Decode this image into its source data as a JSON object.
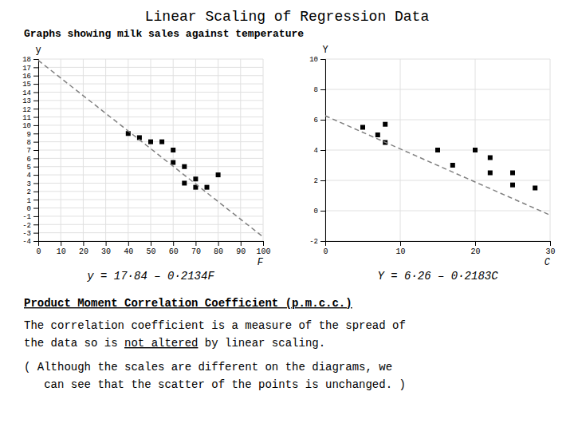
{
  "title": "Linear Scaling of Regression Data",
  "subtitle": "Graphs showing milk sales against temperature",
  "annotations": [
    "Product Moment Correlation Coefficient (p.m.c.c.)",
    "The correlation coefficient is a measure of the spread of",
    "the data so is ",
    "not altered",
    " by linear scaling.",
    "( Although the scales are different on the diagrams, we",
    "   can see that the scatter of the points is unchanged. )"
  ],
  "chart_data": [
    {
      "type": "scatter",
      "xlabel": "F",
      "ylabel": "y",
      "xlim": [
        0,
        100
      ],
      "ylim": [
        -4,
        18
      ],
      "xticks": [
        0,
        10,
        20,
        30,
        40,
        50,
        60,
        70,
        80,
        90,
        100
      ],
      "yticks": [
        -4,
        -3,
        -2,
        -1,
        0,
        1,
        2,
        3,
        4,
        5,
        6,
        7,
        8,
        9,
        10,
        11,
        12,
        13,
        14,
        15,
        16,
        17,
        18
      ],
      "grid": true,
      "annotations": [
        "y = 17·84 – 0·2134F"
      ],
      "series": [
        {
          "type": "scatter",
          "color": "black",
          "marker": "square",
          "x": [
            40,
            45,
            50,
            55,
            60,
            60,
            65,
            65,
            70,
            70,
            75,
            80
          ],
          "values": [
            9,
            8.5,
            8,
            8,
            7,
            5.5,
            5,
            3,
            3.5,
            2.5,
            2.5,
            4
          ]
        },
        {
          "type": "line",
          "color": "gray",
          "line_style": "dashed",
          "x": [
            0,
            100
          ],
          "values": [
            17.84,
            -3.5
          ]
        }
      ]
    },
    {
      "type": "scatter",
      "xlabel": "C",
      "ylabel": "Y",
      "xlim": [
        0,
        30
      ],
      "ylim": [
        -2,
        10
      ],
      "xticks": [
        0,
        10,
        20,
        30
      ],
      "yticks": [
        -2,
        0,
        2,
        4,
        6,
        8,
        10
      ],
      "grid": true,
      "annotations": [
        "Y = 6·26 – 0·2183C"
      ],
      "series": [
        {
          "type": "scatter",
          "color": "black",
          "marker": "square",
          "x": [
            5,
            7,
            8,
            8,
            15,
            17,
            20,
            22,
            22,
            25,
            25,
            28
          ],
          "values": [
            5.5,
            5,
            4.5,
            5.7,
            4,
            3.0,
            4.0,
            3.5,
            2.5,
            1.7,
            2.5,
            1.5
          ]
        },
        {
          "type": "line",
          "color": "gray",
          "line_style": "dashed",
          "x": [
            0,
            30
          ],
          "values": [
            6.26,
            -0.289
          ]
        }
      ]
    }
  ]
}
